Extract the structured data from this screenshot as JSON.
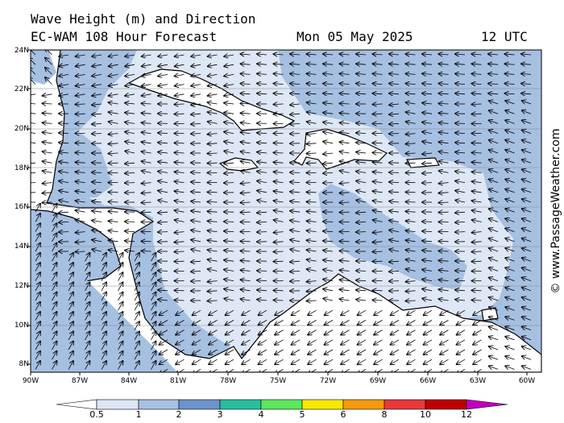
{
  "title": "Wave Height (m) and Direction",
  "model": "EC-WAM 108 Hour Forecast",
  "date": "Mon 05 May 2025",
  "time": "12 UTC",
  "credit": "© www.PassageWeather.com",
  "lat_labels": [
    "24N",
    "22N",
    "20N",
    "18N",
    "16N",
    "14N",
    "12N",
    "10N",
    "8N"
  ],
  "lon_labels": [
    "90W",
    "87W",
    "84W",
    "81W",
    "78W",
    "75W",
    "72W",
    "69W",
    "66W",
    "63W",
    "60W"
  ],
  "colorbar": {
    "ticks": [
      "0.5",
      "1",
      "2",
      "3",
      "4",
      "5",
      "6",
      "8",
      "10",
      "12"
    ],
    "colors": [
      "#dce6f4",
      "#a7c1e2",
      "#6d93cd",
      "#26bf9e",
      "#5ce85c",
      "#f6e800",
      "#f59a0b",
      "#e8383a",
      "#c00000",
      "#c000c0"
    ]
  },
  "wave_colors": {
    "low": "#dde7f5",
    "mid": "#a6c0e2",
    "land": "#ffffff"
  }
}
